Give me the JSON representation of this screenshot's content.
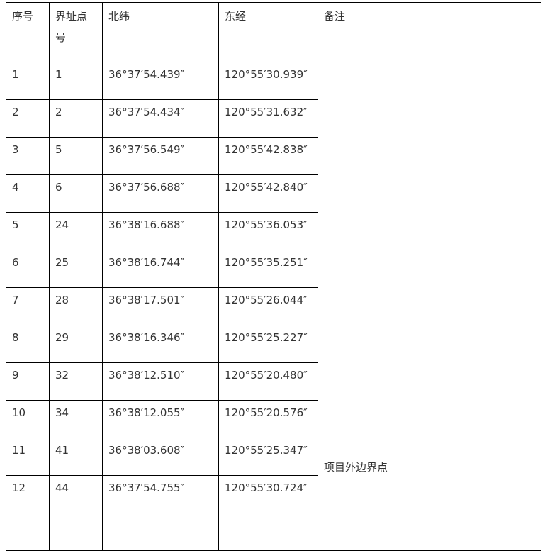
{
  "table": {
    "headers": [
      "序号",
      "界址点号",
      "北纬",
      "东经",
      "备注"
    ],
    "rows": [
      [
        "1",
        "1",
        "36°37′54.439″",
        "120°55′30.939″"
      ],
      [
        "2",
        "2",
        "36°37′54.434″",
        "120°55′31.632″"
      ],
      [
        "3",
        "5",
        "36°37′56.549″",
        "120°55′42.838″"
      ],
      [
        "4",
        "6",
        "36°37′56.688″",
        "120°55′42.840″"
      ],
      [
        "5",
        "24",
        "36°38′16.688″",
        "120°55′36.053″"
      ],
      [
        "6",
        "25",
        "36°38′16.744″",
        "120°55′35.251″"
      ],
      [
        "7",
        "28",
        "36°38′17.501″",
        "120°55′26.044″"
      ],
      [
        "8",
        "29",
        "36°38′16.346″",
        "120°55′25.227″"
      ],
      [
        "9",
        "32",
        "36°38′12.510″",
        "120°55′20.480″"
      ],
      [
        "10",
        "34",
        "36°38′12.055″",
        "120°55′20.576″"
      ],
      [
        "11",
        "41",
        "36°38′03.608″",
        "120°55′25.347″"
      ],
      [
        "12",
        "44",
        "36°37′54.755″",
        "120°55′30.724″"
      ]
    ],
    "remark": "项目外边界点"
  }
}
